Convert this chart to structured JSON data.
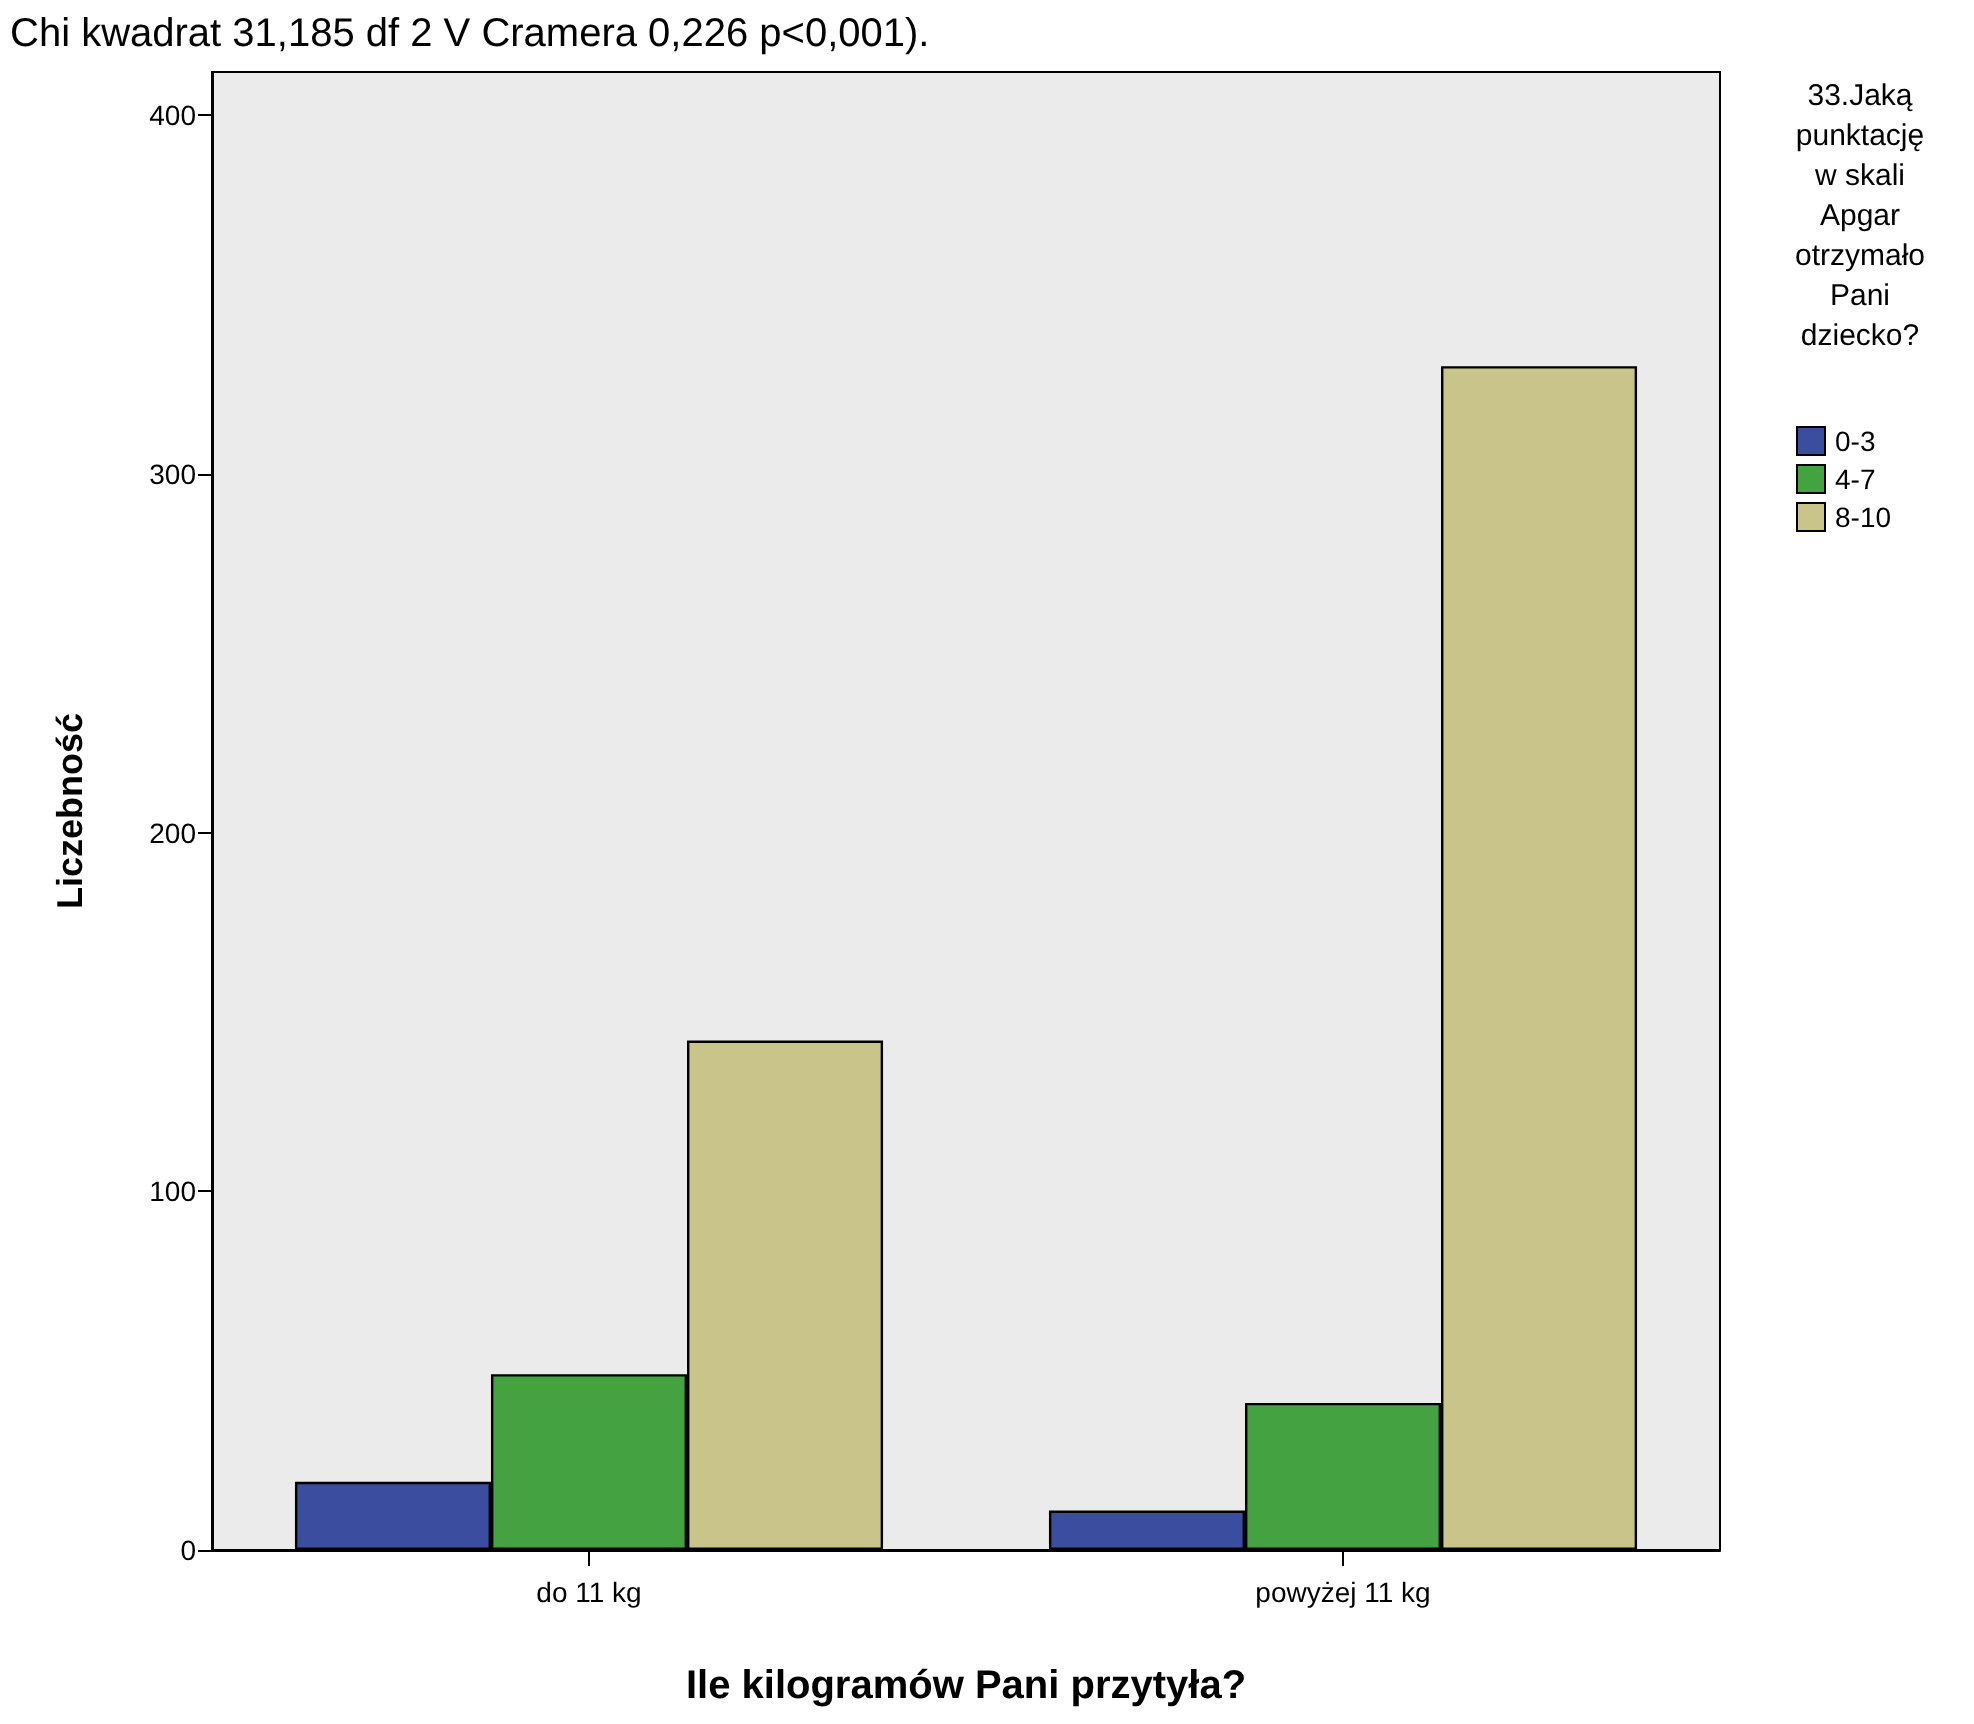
{
  "chart_data": {
    "type": "bar",
    "categories": [
      "do 11 kg",
      "powyżej 11 kg"
    ],
    "series": [
      {
        "name": "0-3",
        "color": "#3a4d9f",
        "values": [
          19,
          11
        ]
      },
      {
        "name": "4-7",
        "color": "#44a340",
        "values": [
          49,
          41
        ]
      },
      {
        "name": "8-10",
        "color": "#c8c48a",
        "values": [
          142,
          330
        ]
      }
    ],
    "xlabel": "Ile kilogramów Pani przytyła?",
    "ylabel": "Liczebność",
    "legend_title": "33.Jaką\npunktację\nw skali\nApgar\notrzymało\nPani\ndziecko?",
    "legend": "right",
    "ylim": [
      0,
      412
    ],
    "yticks": [
      0,
      100,
      200,
      300,
      400
    ],
    "grid": false,
    "annotations": [
      "Chi kwadrat 31,185 df 2 V Cramera 0,226 p<0,001)."
    ]
  }
}
